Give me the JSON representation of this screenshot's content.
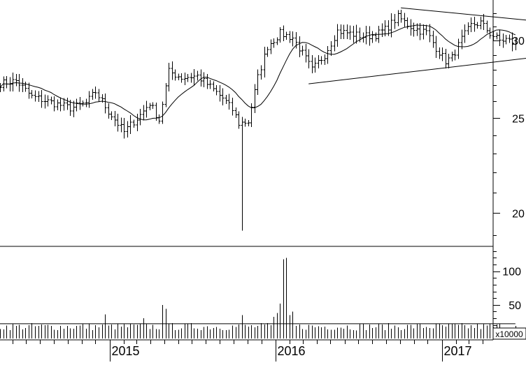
{
  "chart_data": {
    "type": "ohlc",
    "price_axis": {
      "scale": "log",
      "range": [
        18.5,
        33.0
      ],
      "ticks": [
        20,
        25,
        30
      ]
    },
    "volume_axis": {
      "range": [
        0,
        135
      ],
      "ticks": [
        50,
        100
      ],
      "unit_label": "x10000"
    },
    "time_axis": {
      "range": [
        "2014-05-05",
        "2017-04-24"
      ],
      "year_labels": [
        "2015",
        "2016",
        "2017"
      ],
      "year_starts": [
        "2015-01-01",
        "2016-01-01",
        "2017-01-01"
      ]
    },
    "series_start_date": "2014-05-05",
    "week_interval_days": 7,
    "anchors": [
      {
        "w": 0,
        "p": 27.1
      },
      {
        "w": 5,
        "p": 27.3
      },
      {
        "w": 10,
        "p": 26.3
      },
      {
        "w": 15,
        "p": 26.0
      },
      {
        "w": 22,
        "p": 25.6
      },
      {
        "w": 27,
        "p": 25.9
      },
      {
        "w": 30,
        "p": 26.6
      },
      {
        "w": 34,
        "p": 25.4
      },
      {
        "w": 39,
        "p": 24.2
      },
      {
        "w": 44,
        "p": 25.2
      },
      {
        "w": 47,
        "p": 25.9
      },
      {
        "w": 50,
        "p": 24.9
      },
      {
        "w": 53,
        "p": 27.9
      },
      {
        "w": 57,
        "p": 27.5
      },
      {
        "w": 62,
        "p": 27.6
      },
      {
        "w": 66,
        "p": 26.9
      },
      {
        "w": 70,
        "p": 26.2
      },
      {
        "w": 73,
        "p": 25.5
      },
      {
        "w": 75,
        "p": 24.7
      },
      {
        "w": 78,
        "p": 24.8
      },
      {
        "w": 81,
        "p": 27.5
      },
      {
        "w": 84,
        "p": 29.6
      },
      {
        "w": 88,
        "p": 30.5
      },
      {
        "w": 92,
        "p": 30.2
      },
      {
        "w": 95,
        "p": 29.1
      },
      {
        "w": 98,
        "p": 28.0
      },
      {
        "w": 102,
        "p": 29.0
      },
      {
        "w": 106,
        "p": 30.7
      },
      {
        "w": 110,
        "p": 30.5
      },
      {
        "w": 114,
        "p": 30.3
      },
      {
        "w": 118,
        "p": 30.4
      },
      {
        "w": 121,
        "p": 30.8
      },
      {
        "w": 125,
        "p": 31.7
      },
      {
        "w": 129,
        "p": 31.0
      },
      {
        "w": 132,
        "p": 30.7
      },
      {
        "w": 134,
        "p": 30.6
      },
      {
        "w": 137,
        "p": 29.5
      },
      {
        "w": 140,
        "p": 28.6
      },
      {
        "w": 142,
        "p": 28.8
      },
      {
        "w": 145,
        "p": 30.1
      },
      {
        "w": 148,
        "p": 31.1
      },
      {
        "w": 151,
        "p": 31.3
      },
      {
        "w": 154,
        "p": 30.5
      },
      {
        "w": 157,
        "p": 30.0
      },
      {
        "w": 159,
        "p": 30.1
      },
      {
        "w": 162,
        "p": 29.7
      }
    ],
    "volume_base": 22,
    "volume_spikes": [
      {
        "w": 33,
        "v": 36
      },
      {
        "w": 45,
        "v": 30
      },
      {
        "w": 51,
        "v": 50
      },
      {
        "w": 52,
        "v": 44
      },
      {
        "w": 76,
        "v": 35
      },
      {
        "w": 86,
        "v": 32
      },
      {
        "w": 87,
        "v": 38
      },
      {
        "w": 88,
        "v": 52
      },
      {
        "w": 89,
        "v": 118
      },
      {
        "w": 90,
        "v": 120
      },
      {
        "w": 91,
        "v": 35
      },
      {
        "w": 92,
        "v": 40
      }
    ],
    "outliers": [
      {
        "w": 76,
        "low": 19.2
      }
    ],
    "trendlines": [
      {
        "from": {
          "w": 97,
          "p": 27.1
        },
        "to": {
          "w": 182,
          "p": 29.2
        }
      },
      {
        "from": {
          "w": 126,
          "p": 32.4
        },
        "to": {
          "w": 182,
          "p": 31.1
        }
      }
    ]
  }
}
